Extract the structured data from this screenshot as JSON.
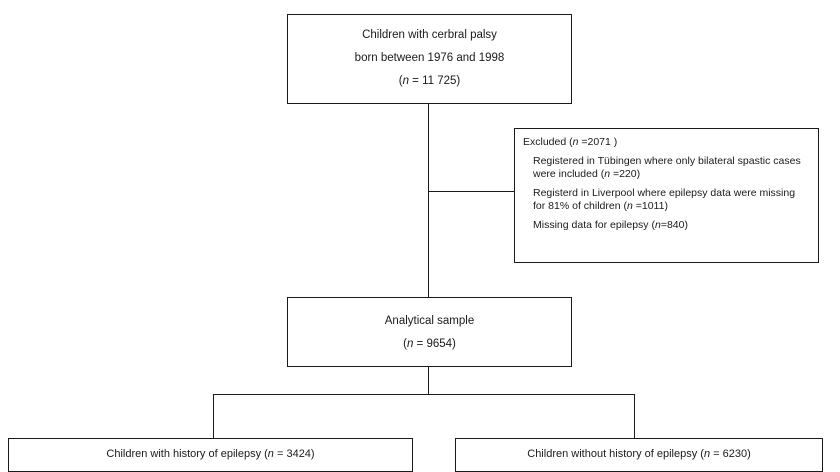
{
  "top_box": {
    "line1": "Children with cerbral palsy",
    "line2": "born between 1976 and 1998",
    "n_prefix": "(",
    "n_var": "n",
    "n_value": " = 11 725)"
  },
  "excluded_box": {
    "title_prefix": "Excluded (",
    "title_var": "n",
    "title_value": " =2071 )",
    "item1_text": "Registered in Tübingen where only bilateral spastic cases were included  (",
    "item1_var": "n",
    "item1_value": " =220)",
    "item2_text": "Registerd in Liverpool where epilepsy data were missing for  81% of children (",
    "item2_var": "n",
    "item2_value": " =1011)",
    "item3_text": "Missing data for epilepsy (",
    "item3_var": "n",
    "item3_value": "=840)"
  },
  "analytical_box": {
    "line1": "Analytical sample",
    "n_prefix": "(",
    "n_var": "n",
    "n_value": " = 9654)"
  },
  "left_box": {
    "text": "Children with history of epilepsy (",
    "var": "n",
    "value": " = 3424)"
  },
  "right_box": {
    "text": "Children without history of epilepsy  (",
    "var": "n",
    "value": " = 6230)"
  }
}
